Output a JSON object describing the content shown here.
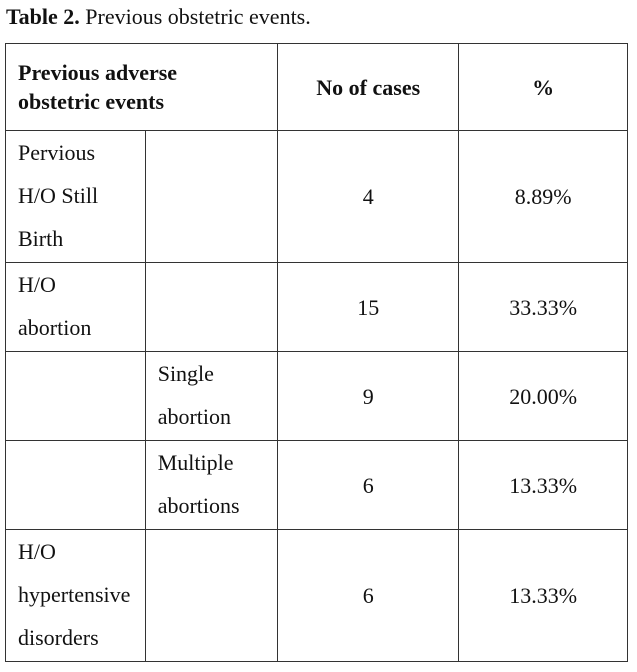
{
  "caption": {
    "label": "Table 2.",
    "text": " Previous obstetric events."
  },
  "table": {
    "headers": {
      "event": "Previous adverse obstetric events",
      "cases": "No of cases",
      "percent": "%"
    },
    "rows": [
      {
        "category": "Pervious H/O Still Birth",
        "subcategory": "",
        "cases": "4",
        "percent": "8.89%"
      },
      {
        "category": "H/O abortion",
        "subcategory": "",
        "cases": "15",
        "percent": "33.33%"
      },
      {
        "category": "",
        "subcategory": "Single abortion",
        "cases": "9",
        "percent": "20.00%"
      },
      {
        "category": "",
        "subcategory": "Multiple abortions",
        "cases": "6",
        "percent": "13.33%"
      },
      {
        "category": "H/O hypertensive disorders",
        "subcategory": "",
        "cases": "6",
        "percent": "13.33%"
      }
    ]
  }
}
